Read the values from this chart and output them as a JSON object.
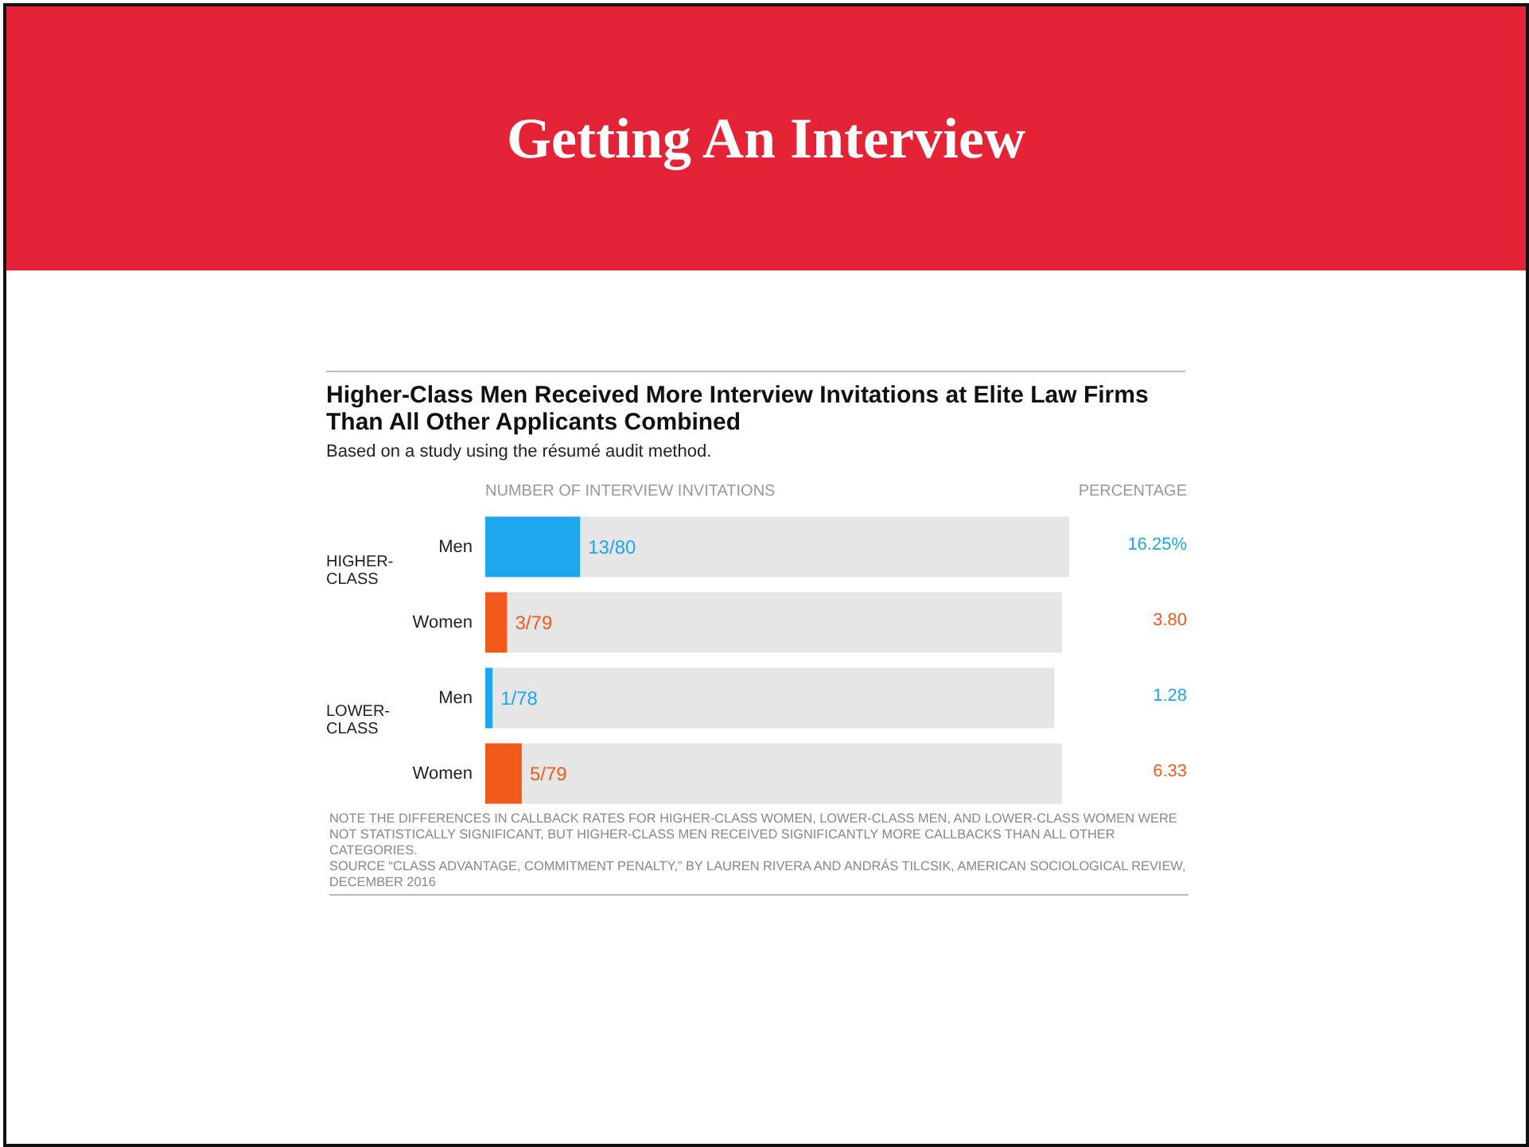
{
  "chart_data": {
    "type": "bar",
    "orientation": "horizontal",
    "stacked": true,
    "title": "Getting An Interview",
    "subtitle": "Higher-Class Men Received More Interview Invitations at Elite Law Firms Than All Other Applicants Combined",
    "xlabel": "NUMBER OF INTERVIEW INVITATIONS",
    "categories": [
      "Men",
      "Women",
      "Men",
      "Women"
    ],
    "series": [
      {
        "colors": [
          "#1ea7ec",
          "#f25a1c",
          "#1ea7ec",
          "#f25a1c"
        ],
        "values": [
          13,
          3,
          1,
          5
        ],
        "value_labels": [
          "13/80",
          "3/79",
          "1/78",
          "5/79"
        ]
      },
      {
        "color": "#e6e6e6",
        "values": [
          67,
          76,
          77,
          74
        ]
      }
    ],
    "tick_labels": "y",
    "annotations": [
      "HIGHER-CLASS",
      "LOWER-CLASS",
      "PERCENTAGE",
      "16.25%",
      "3.80",
      "1.28",
      "6.33",
      "Based on a study using the résumé audit method.",
      "NOTE  THE DIFFERENCES IN CALLBACK RATES FOR HIGHER-CLASS WOMEN, LOWER-CLASS MEN, AND LOWER-CLASS WOMEN WERE NOT STATISTICALLY SIGNIFICANT, BUT HIGHER-CLASS MEN RECEIVED SIGNIFICANTLY MORE CALLBACKS THAN ALL OTHER CATEGORIES.",
      "SOURCE  “CLASS ADVANTAGE, COMMITMENT PENALTY,” BY LAUREN RIVERA AND ANDRÁS TILCSIK, AMERICAN SOCIOLOGICAL REVIEW, DECEMBER 2016"
    ]
  }
}
